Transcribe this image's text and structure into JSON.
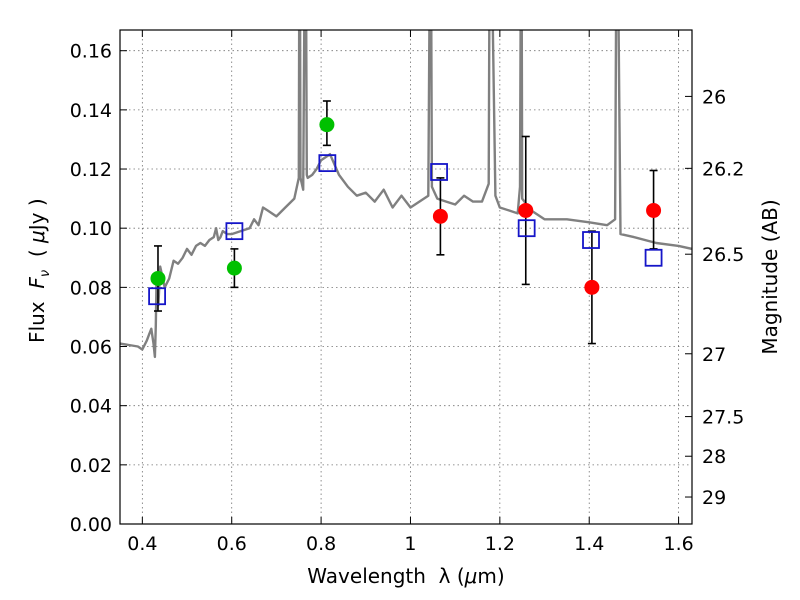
{
  "chart_data": {
    "type": "scatter",
    "title": "",
    "xlabel_parts": [
      "Wavelength  λ (",
      "μ",
      "m)"
    ],
    "ylabel_parts": [
      "Flux  ",
      "F",
      "ν",
      "  ( ",
      "μ",
      "Jy )"
    ],
    "y2label": "Magnitude (AB)",
    "xlim": [
      0.35,
      1.63
    ],
    "ylim": [
      0.0,
      0.167
    ],
    "grid": true,
    "x_ticks": [
      0.4,
      0.6,
      0.8,
      1.0,
      1.2,
      1.4,
      1.6
    ],
    "x_tick_labels": [
      "0.4",
      "0.6",
      "0.8",
      "1",
      "1.2",
      "1.4",
      "1.6"
    ],
    "y_ticks": [
      0.0,
      0.02,
      0.04,
      0.06,
      0.08,
      0.1,
      0.12,
      0.14,
      0.16
    ],
    "y_tick_labels": [
      "0.00",
      "0.02",
      "0.04",
      "0.06",
      "0.08",
      "0.10",
      "0.12",
      "0.14",
      "0.16"
    ],
    "y2_ticks": [
      26,
      26.2,
      26.5,
      27,
      27.5,
      28,
      29
    ],
    "y2_tick_labels": [
      "26",
      "26.2",
      "26.5",
      "27",
      "27.5",
      "28",
      "29"
    ],
    "model_spectrum": {
      "color": "#808080",
      "x": [
        0.35,
        0.37,
        0.39,
        0.4,
        0.41,
        0.415,
        0.42,
        0.425,
        0.428,
        0.43,
        0.432,
        0.436,
        0.44,
        0.45,
        0.46,
        0.47,
        0.48,
        0.49,
        0.5,
        0.51,
        0.52,
        0.53,
        0.54,
        0.55,
        0.56,
        0.565,
        0.57,
        0.575,
        0.58,
        0.59,
        0.6,
        0.62,
        0.64,
        0.65,
        0.66,
        0.67,
        0.68,
        0.7,
        0.72,
        0.74,
        0.75,
        0.752,
        0.754,
        0.76,
        0.765,
        0.768,
        0.77,
        0.78,
        0.79,
        0.8,
        0.82,
        0.84,
        0.86,
        0.88,
        0.9,
        0.92,
        0.94,
        0.96,
        0.98,
        1.0,
        1.02,
        1.04,
        1.045,
        1.048,
        1.06,
        1.08,
        1.1,
        1.12,
        1.14,
        1.16,
        1.175,
        1.178,
        1.19,
        1.2,
        1.22,
        1.24,
        1.245,
        1.248,
        1.25,
        1.27,
        1.3,
        1.35,
        1.4,
        1.44,
        1.458,
        1.462,
        1.47,
        1.5,
        1.55,
        1.6,
        1.63
      ],
      "y": [
        0.061,
        0.0605,
        0.06,
        0.059,
        0.062,
        0.064,
        0.066,
        0.061,
        0.0565,
        0.067,
        0.084,
        0.074,
        0.087,
        0.08,
        0.083,
        0.089,
        0.088,
        0.09,
        0.093,
        0.091,
        0.094,
        0.095,
        0.094,
        0.096,
        0.097,
        0.1,
        0.096,
        0.097,
        0.099,
        0.098,
        0.098,
        0.099,
        0.1,
        0.103,
        0.101,
        0.107,
        0.106,
        0.104,
        0.107,
        0.11,
        0.117,
        0.23,
        0.117,
        0.113,
        0.23,
        0.118,
        0.117,
        0.118,
        0.12,
        0.123,
        0.125,
        0.118,
        0.114,
        0.111,
        0.112,
        0.109,
        0.113,
        0.107,
        0.111,
        0.107,
        0.109,
        0.111,
        0.23,
        0.114,
        0.11,
        0.109,
        0.108,
        0.111,
        0.109,
        0.109,
        0.115,
        0.23,
        0.111,
        0.107,
        0.106,
        0.105,
        0.114,
        0.23,
        0.11,
        0.106,
        0.103,
        0.103,
        0.102,
        0.101,
        0.103,
        0.23,
        0.098,
        0.097,
        0.095,
        0.094,
        0.093
      ]
    },
    "series": [
      {
        "name": "",
        "marker": "open-square",
        "color": "#1515c8",
        "points": [
          {
            "x": 0.433,
            "y": 0.077
          },
          {
            "x": 0.606,
            "y": 0.099
          },
          {
            "x": 0.814,
            "y": 0.122
          },
          {
            "x": 1.064,
            "y": 0.119
          },
          {
            "x": 1.26,
            "y": 0.1
          },
          {
            "x": 1.404,
            "y": 0.096
          },
          {
            "x": 1.544,
            "y": 0.09
          }
        ]
      },
      {
        "name": "",
        "marker": "filled-circle",
        "color": "#00c000",
        "points": [
          {
            "x": 0.435,
            "y": 0.083,
            "ylow": 0.072,
            "yhigh": 0.094
          },
          {
            "x": 0.606,
            "y": 0.0865,
            "ylow": 0.08,
            "yhigh": 0.093
          },
          {
            "x": 0.813,
            "y": 0.135,
            "ylow": 0.128,
            "yhigh": 0.143
          }
        ]
      },
      {
        "name": "",
        "marker": "filled-circle",
        "color": "#ff0000",
        "points": [
          {
            "x": 1.067,
            "y": 0.104,
            "ylow": 0.091,
            "yhigh": 0.117
          },
          {
            "x": 1.258,
            "y": 0.106,
            "ylow": 0.081,
            "yhigh": 0.131
          },
          {
            "x": 1.406,
            "y": 0.08,
            "ylow": 0.061,
            "yhigh": 0.099
          },
          {
            "x": 1.544,
            "y": 0.106,
            "ylow": 0.093,
            "yhigh": 0.1195
          }
        ]
      }
    ]
  }
}
